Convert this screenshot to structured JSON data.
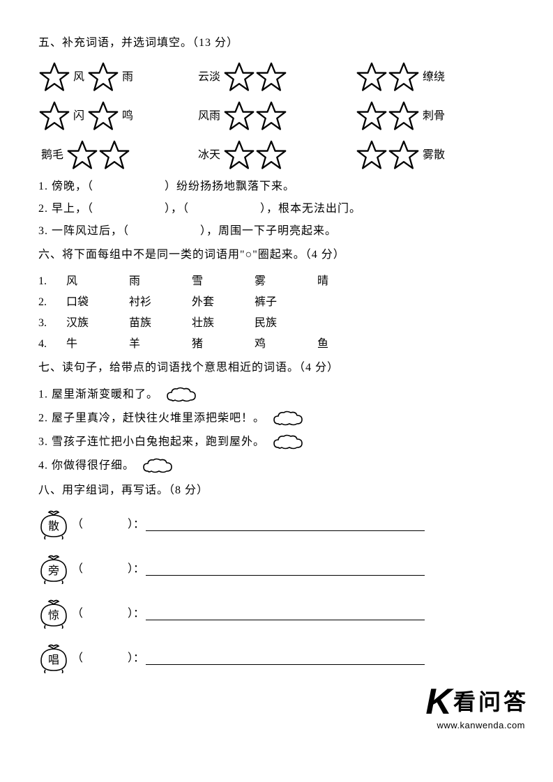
{
  "section5": {
    "title": "五、补充词语，并选词填空。（13 分）",
    "rows": [
      {
        "g1": {
          "pre": "",
          "mid": "风",
          "mid2": "雨",
          "post": ""
        },
        "g2": {
          "pre": "云淡",
          "post": ""
        },
        "g3": {
          "pre": "",
          "post": "缭绕"
        }
      },
      {
        "g1": {
          "pre": "",
          "mid": "闪",
          "mid2": "鸣",
          "post": ""
        },
        "g2": {
          "pre": "风雨",
          "post": ""
        },
        "g3": {
          "pre": "",
          "post": "刺骨"
        }
      },
      {
        "g1": {
          "pre": "鹅毛",
          "post": ""
        },
        "g2": {
          "pre": "冰天",
          "post": ""
        },
        "g3": {
          "pre": "",
          "post": "雾散"
        }
      }
    ],
    "q1": "1. 傍晚，（　　　　　　）纷纷扬扬地飘落下来。",
    "q2": "2. 早上，（　　　　　　），（　　　　　　），根本无法出门。",
    "q3": "3. 一阵风过后，（　　　　　　），周围一下子明亮起来。"
  },
  "section6": {
    "title": "六、将下面每组中不是同一类的词语用\"○\"圈起来。（4 分）",
    "rows": [
      [
        "1.",
        "风",
        "雨",
        "雪",
        "雾",
        "晴"
      ],
      [
        "2.",
        "口袋",
        "衬衫",
        "外套",
        "裤子",
        ""
      ],
      [
        "3.",
        "汉族",
        "苗族",
        "壮族",
        "民族",
        ""
      ],
      [
        "4.",
        "牛",
        "羊",
        "猪",
        "鸡",
        "鱼"
      ]
    ]
  },
  "section7": {
    "title": "七、读句子，给带点的词语找个意思相近的词语。（4 分）",
    "items": [
      "1. 屋里渐渐变暖和了。",
      "2. 屋子里真冷，赶快往火堆里添把柴吧！。",
      "3. 雪孩子连忙把小白兔抱起来，跑到屋外。",
      "4. 你做得很仔细。"
    ]
  },
  "section8": {
    "title": "八、用字组词，再写话。（8 分）",
    "chars": [
      "散",
      "旁",
      "惊",
      "唱"
    ],
    "after": "（　　　　）："
  },
  "watermark": {
    "logo": "K",
    "cn": "看问答",
    "url": "www.kanwenda.com"
  },
  "svg": {
    "star_stroke": "#000000",
    "star_stroke_width": 2.5,
    "star_fill": "none",
    "cloud_stroke": "#000000",
    "cloud_stroke_width": 1.6,
    "bao_stroke": "#000000",
    "bao_stroke_width": 1.6
  }
}
